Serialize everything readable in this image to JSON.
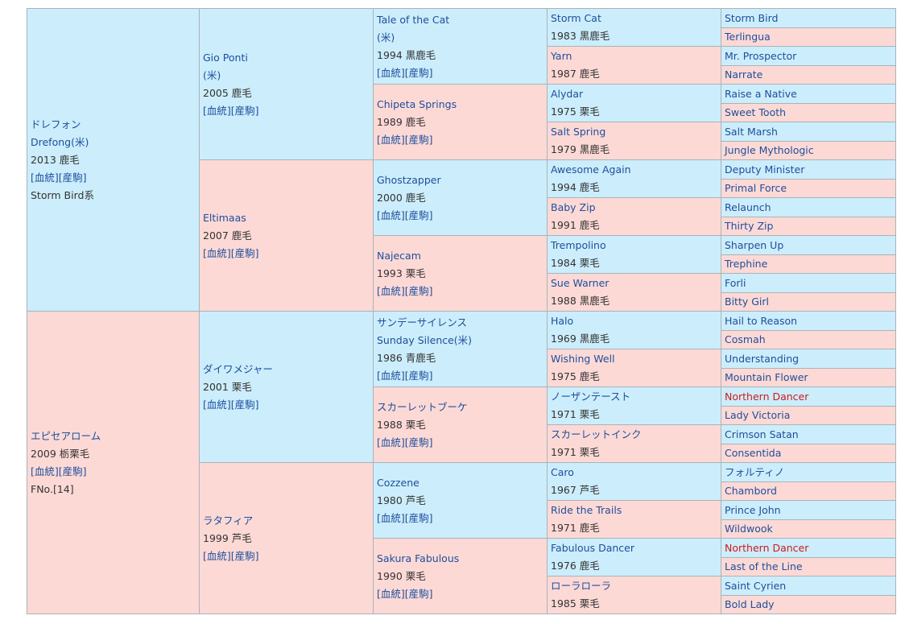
{
  "pedigree": {
    "generations": [
      [
        {
          "name": [
            "ドレフォン",
            "Drefong(米)"
          ],
          "info": "2013 鹿毛",
          "links": "[血統][産駒]",
          "note": "Storm Bird系"
        },
        {
          "name": [
            "エピセアローム"
          ],
          "info": "2009 栃栗毛",
          "links": "[血統][産駒]",
          "note": "FNo.[14]"
        }
      ],
      [
        {
          "name": [
            "Gio Ponti",
            "(米)"
          ],
          "info": "2005 鹿毛",
          "links": "[血統][産駒]"
        },
        {
          "name": [
            "Eltimaas"
          ],
          "info": "2007 鹿毛",
          "links": "[血統][産駒]"
        },
        {
          "name": [
            "ダイワメジャー"
          ],
          "info": "2001 栗毛",
          "links": "[血統][産駒]"
        },
        {
          "name": [
            "ラタフィア"
          ],
          "info": "1999 芦毛",
          "links": "[血統][産駒]"
        }
      ],
      [
        {
          "name": [
            "Tale of the Cat",
            "(米)"
          ],
          "info": "1994 黒鹿毛",
          "links": "[血統][産駒]"
        },
        {
          "name": [
            "Chipeta Springs"
          ],
          "info": "1989 鹿毛",
          "links": "[血統][産駒]"
        },
        {
          "name": [
            "Ghostzapper"
          ],
          "info": "2000 鹿毛",
          "links": "[血統][産駒]"
        },
        {
          "name": [
            "Najecam"
          ],
          "info": "1993 栗毛",
          "links": "[血統][産駒]"
        },
        {
          "name": [
            "サンデーサイレンス",
            "Sunday Silence(米)"
          ],
          "info": "1986 青鹿毛",
          "links": "[血統][産駒]"
        },
        {
          "name": [
            "スカーレットブーケ"
          ],
          "info": "1988 栗毛",
          "links": "[血統][産駒]"
        },
        {
          "name": [
            "Cozzene"
          ],
          "info": "1980 芦毛",
          "links": "[血統][産駒]"
        },
        {
          "name": [
            "Sakura Fabulous"
          ],
          "info": "1990 栗毛",
          "links": "[血統][産駒]"
        }
      ],
      [
        {
          "name": [
            "Storm Cat"
          ],
          "info": "1983 黒鹿毛"
        },
        {
          "name": [
            "Yarn"
          ],
          "info": "1987 鹿毛"
        },
        {
          "name": [
            "Alydar"
          ],
          "info": "1975 栗毛"
        },
        {
          "name": [
            "Salt Spring"
          ],
          "info": "1979 黒鹿毛"
        },
        {
          "name": [
            "Awesome Again"
          ],
          "info": "1994 鹿毛"
        },
        {
          "name": [
            "Baby Zip"
          ],
          "info": "1991 鹿毛"
        },
        {
          "name": [
            "Trempolino"
          ],
          "info": "1984 栗毛"
        },
        {
          "name": [
            "Sue Warner"
          ],
          "info": "1988 黒鹿毛"
        },
        {
          "name": [
            "Halo"
          ],
          "info": "1969 黒鹿毛"
        },
        {
          "name": [
            "Wishing Well"
          ],
          "info": "1975 鹿毛"
        },
        {
          "name": [
            "ノーザンテースト"
          ],
          "info": "1971 栗毛"
        },
        {
          "name": [
            "スカーレットインク"
          ],
          "info": "1971 栗毛"
        },
        {
          "name": [
            "Caro"
          ],
          "info": "1967 芦毛"
        },
        {
          "name": [
            "Ride the Trails"
          ],
          "info": "1971 鹿毛"
        },
        {
          "name": [
            "Fabulous Dancer"
          ],
          "info": "1976 鹿毛"
        },
        {
          "name": [
            "ローラローラ"
          ],
          "info": "1985 栗毛"
        }
      ],
      [
        {
          "name": [
            "Storm Bird"
          ]
        },
        {
          "name": [
            "Terlingua"
          ]
        },
        {
          "name": [
            "Mr. Prospector"
          ]
        },
        {
          "name": [
            "Narrate"
          ]
        },
        {
          "name": [
            "Raise a Native"
          ]
        },
        {
          "name": [
            "Sweet Tooth"
          ]
        },
        {
          "name": [
            "Salt Marsh"
          ]
        },
        {
          "name": [
            "Jungle Mythologic"
          ]
        },
        {
          "name": [
            "Deputy Minister"
          ]
        },
        {
          "name": [
            "Primal Force"
          ]
        },
        {
          "name": [
            "Relaunch"
          ]
        },
        {
          "name": [
            "Thirty Zip"
          ]
        },
        {
          "name": [
            "Sharpen Up"
          ]
        },
        {
          "name": [
            "Trephine"
          ]
        },
        {
          "name": [
            "Forli"
          ]
        },
        {
          "name": [
            "Bitty Girl"
          ]
        },
        {
          "name": [
            "Hail to Reason"
          ]
        },
        {
          "name": [
            "Cosmah"
          ]
        },
        {
          "name": [
            "Understanding"
          ]
        },
        {
          "name": [
            "Mountain Flower"
          ]
        },
        {
          "name": [
            "Northern Dancer"
          ],
          "color": "#d11a1a"
        },
        {
          "name": [
            "Lady Victoria"
          ]
        },
        {
          "name": [
            "Crimson Satan"
          ]
        },
        {
          "name": [
            "Consentida"
          ]
        },
        {
          "name": [
            "フォルティノ"
          ]
        },
        {
          "name": [
            "Chambord"
          ]
        },
        {
          "name": [
            "Prince John"
          ]
        },
        {
          "name": [
            "Wildwook"
          ]
        },
        {
          "name": [
            "Northern Dancer"
          ],
          "color": "#d11a1a"
        },
        {
          "name": [
            "Last of the Line"
          ]
        },
        {
          "name": [
            "Saint Cyrien"
          ]
        },
        {
          "name": [
            "Bold Lady"
          ]
        }
      ]
    ]
  }
}
